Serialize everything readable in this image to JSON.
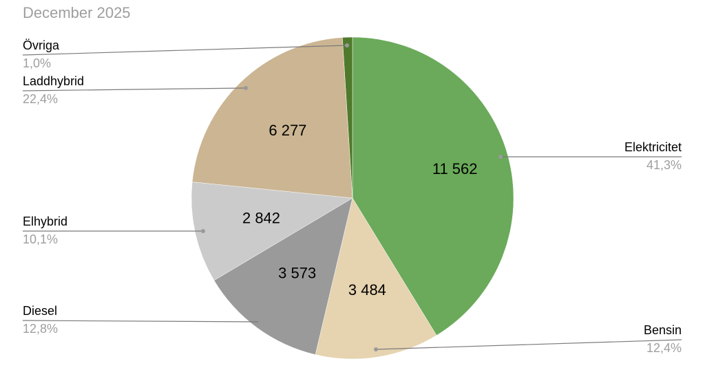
{
  "chart_data": {
    "type": "pie",
    "title": "December 2025",
    "legend": "none",
    "label_color": "#9e9e9e",
    "slices": [
      {
        "label": "Elektricitet",
        "value": 11562,
        "value_label": "11 562",
        "percent": "41,3%",
        "color": "#6aaa5a"
      },
      {
        "label": "Bensin",
        "value": 3484,
        "value_label": "3 484",
        "percent": "12,4%",
        "color": "#e6d3b0"
      },
      {
        "label": "Diesel",
        "value": 3573,
        "value_label": "3 573",
        "percent": "12,8%",
        "color": "#9a9a9a"
      },
      {
        "label": "Elhybrid",
        "value": 2842,
        "value_label": "2 842",
        "percent": "10,1%",
        "color": "#cbcbcb"
      },
      {
        "label": "Laddhybrid",
        "value": 6277,
        "value_label": "6 277",
        "percent": "22,4%",
        "color": "#cbb593"
      },
      {
        "label": "Övriga",
        "value": 280,
        "value_label": "",
        "percent": "1,0%",
        "color": "#4f7a2c"
      }
    ]
  }
}
